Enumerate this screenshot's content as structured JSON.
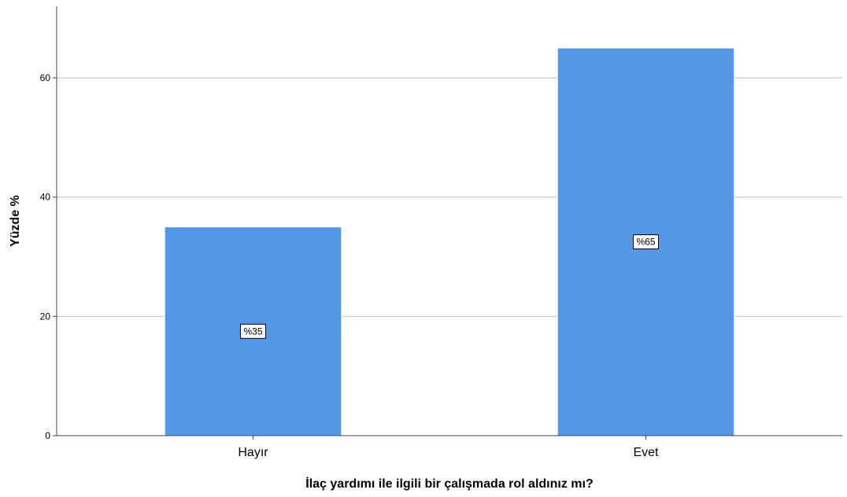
{
  "chart_data": {
    "type": "bar",
    "categories": [
      "Hayır",
      "Evet"
    ],
    "values": [
      35,
      65
    ],
    "data_labels": [
      "%35",
      "%65"
    ],
    "xlabel": "İlaç yardımı ile ilgili bir çalışmada rol aldınız mı?",
    "ylabel": "Yüzde %",
    "ylim": [
      0,
      72
    ],
    "yticks": [
      0,
      20,
      40,
      60
    ],
    "grid": true,
    "bar_color": "#5596e6"
  }
}
